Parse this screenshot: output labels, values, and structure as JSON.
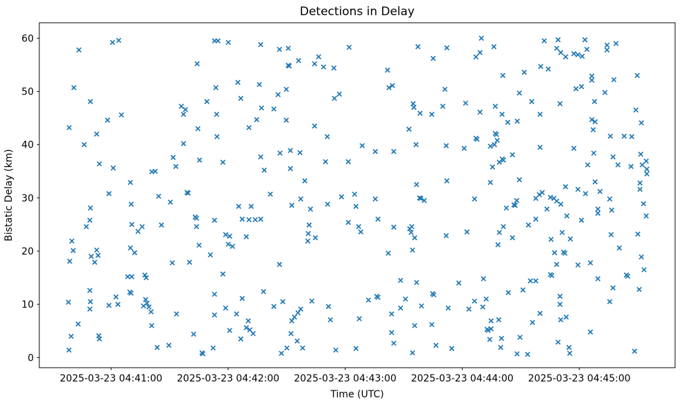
{
  "figure": {
    "title": "Detections in Delay",
    "xlabel": "Time (UTC)",
    "ylabel": "Bistatic Delay (km)"
  },
  "chart_data": {
    "type": "scatter",
    "title": "Detections in Delay",
    "xlabel": "Time (UTC)",
    "ylabel": "Bistatic Delay (km)",
    "marker": "x",
    "marker_color": "#1f77b4",
    "axis_color": "#000000",
    "grid": false,
    "legend": null,
    "x_unit": "seconds after 2025-03-23 04:40:00 UTC",
    "xlim_sec": [
      23.2,
      349.1
    ],
    "ylim": [
      -1.9,
      62.9
    ],
    "x_ticks": [
      {
        "sec": 60,
        "label": "2025-03-23 04:41:00"
      },
      {
        "sec": 120,
        "label": "2025-03-23 04:42:00"
      },
      {
        "sec": 180,
        "label": "2025-03-23 04:43:00"
      },
      {
        "sec": 240,
        "label": "2025-03-23 04:44:00"
      },
      {
        "sec": 300,
        "label": "2025-03-23 04:45:00"
      }
    ],
    "y_ticks": [
      0,
      10,
      20,
      30,
      40,
      50,
      60
    ],
    "points": [
      [
        60.7,
        59.2
      ],
      [
        63.9,
        59.6
      ],
      [
        43.5,
        57.8
      ],
      [
        104.1,
        55.2
      ],
      [
        40.9,
        50.7
      ],
      [
        49.4,
        48.1
      ],
      [
        58.2,
        44.6
      ],
      [
        65.3,
        45.6
      ],
      [
        96.0,
        47.2
      ],
      [
        98.1,
        46.6
      ],
      [
        97.1,
        45.7
      ],
      [
        38.5,
        43.2
      ],
      [
        52.6,
        42.0
      ],
      [
        104.5,
        43.0
      ],
      [
        113.0,
        59.5
      ],
      [
        114.8,
        59.5
      ],
      [
        120.1,
        59.2
      ],
      [
        136.7,
        58.8
      ],
      [
        146.3,
        57.9
      ],
      [
        150.8,
        58.1
      ],
      [
        182.0,
        58.3
      ],
      [
        156.1,
        55.8
      ],
      [
        166.4,
        56.5
      ],
      [
        150.8,
        54.9
      ],
      [
        151.3,
        54.8
      ],
      [
        164.3,
        55.2
      ],
      [
        168.9,
        54.6
      ],
      [
        174.2,
        54.4
      ],
      [
        125.0,
        51.7
      ],
      [
        113.7,
        50.7
      ],
      [
        136.0,
        51.3
      ],
      [
        149.8,
        50.4
      ],
      [
        145.6,
        49.4
      ],
      [
        109.1,
        48.1
      ],
      [
        126.5,
        48.7
      ],
      [
        177.0,
        49.5
      ],
      [
        174.5,
        48.7
      ],
      [
        137.1,
        46.9
      ],
      [
        143.4,
        46.7
      ],
      [
        114.1,
        45.7
      ],
      [
        134.6,
        44.7
      ],
      [
        149.8,
        44.6
      ],
      [
        130.7,
        43.2
      ],
      [
        164.3,
        43.5
      ],
      [
        249.8,
        60.0
      ],
      [
        256.2,
        58.4
      ],
      [
        217.3,
        58.4
      ],
      [
        232.1,
        58.2
      ],
      [
        249.1,
        57.3
      ],
      [
        247.0,
        56.5
      ],
      [
        225.1,
        56.2
      ],
      [
        201.7,
        54.0
      ],
      [
        260.8,
        53.0
      ],
      [
        202.4,
        50.7
      ],
      [
        204.2,
        51.1
      ],
      [
        231.1,
        50.4
      ],
      [
        214.8,
        47.7
      ],
      [
        215.2,
        47.0
      ],
      [
        218.4,
        45.9
      ],
      [
        224.4,
        45.7
      ],
      [
        230.0,
        47.2
      ],
      [
        241.7,
        47.8
      ],
      [
        249.1,
        46.1
      ],
      [
        256.9,
        47.2
      ],
      [
        260.4,
        45.7
      ],
      [
        263.3,
        44.2
      ],
      [
        212.7,
        42.9
      ],
      [
        268.2,
        44.4
      ],
      [
        256.9,
        42.1
      ],
      [
        257.5,
        41.9
      ],
      [
        257.9,
        40.8
      ],
      [
        256.5,
        40.0
      ],
      [
        254.4,
        39.7
      ],
      [
        282.0,
        59.5
      ],
      [
        289.1,
        59.7
      ],
      [
        302.9,
        59.7
      ],
      [
        288.4,
        58.1
      ],
      [
        290.5,
        57.3
      ],
      [
        293.0,
        56.5
      ],
      [
        297.2,
        57.1
      ],
      [
        299.3,
        56.9
      ],
      [
        301.5,
        56.6
      ],
      [
        303.9,
        57.9
      ],
      [
        314.2,
        58.7
      ],
      [
        314.2,
        57.8
      ],
      [
        318.8,
        59.0
      ],
      [
        271.8,
        53.6
      ],
      [
        280.2,
        54.7
      ],
      [
        284.1,
        54.2
      ],
      [
        329.7,
        53.0
      ],
      [
        306.4,
        52.9
      ],
      [
        306.4,
        52.1
      ],
      [
        317.7,
        52.2
      ],
      [
        298.3,
        50.5
      ],
      [
        301.1,
        50.9
      ],
      [
        269.3,
        49.7
      ],
      [
        313.1,
        49.8
      ],
      [
        275.6,
        48.1
      ],
      [
        290.1,
        47.7
      ],
      [
        307.8,
        48.1
      ],
      [
        279.9,
        45.7
      ],
      [
        329.0,
        46.5
      ],
      [
        331.8,
        44.1
      ],
      [
        306.4,
        44.7
      ],
      [
        308.1,
        44.3
      ],
      [
        307.1,
        42.8
      ],
      [
        315.9,
        41.6
      ],
      [
        323.0,
        41.6
      ],
      [
        326.9,
        41.5
      ],
      [
        46.2,
        40.0
      ],
      [
        97.1,
        40.2
      ],
      [
        54.0,
        36.4
      ],
      [
        61.1,
        35.6
      ],
      [
        91.8,
        37.6
      ],
      [
        93.2,
        35.9
      ],
      [
        80.9,
        34.9
      ],
      [
        82.6,
        35.0
      ],
      [
        105.3,
        37.1
      ],
      [
        69.9,
        32.9
      ],
      [
        58.9,
        30.8
      ],
      [
        70.3,
        28.8
      ],
      [
        84.4,
        30.3
      ],
      [
        90.4,
        29.2
      ],
      [
        98.9,
        31.0
      ],
      [
        99.5,
        30.9
      ],
      [
        49.4,
        28.1
      ],
      [
        103.1,
        26.4
      ],
      [
        103.8,
        26.2
      ],
      [
        49.1,
        25.8
      ],
      [
        47.3,
        24.6
      ],
      [
        70.6,
        25.0
      ],
      [
        75.9,
        24.6
      ],
      [
        73.8,
        23.7
      ],
      [
        85.8,
        24.9
      ],
      [
        103.8,
        24.6
      ],
      [
        39.9,
        21.9
      ],
      [
        40.6,
        20.1
      ],
      [
        52.6,
        20.2
      ],
      [
        69.9,
        20.6
      ],
      [
        72.1,
        19.7
      ],
      [
        105.1,
        21.1
      ],
      [
        114.3,
        41.5
      ],
      [
        170.8,
        41.5
      ],
      [
        117.3,
        36.7
      ],
      [
        136.7,
        37.7
      ],
      [
        146.6,
        38.4
      ],
      [
        151.9,
        38.9
      ],
      [
        156.8,
        38.5
      ],
      [
        138.5,
        35.2
      ],
      [
        151.9,
        35.5
      ],
      [
        169.9,
        36.8
      ],
      [
        181.6,
        36.8
      ],
      [
        159.3,
        33.2
      ],
      [
        141.6,
        30.7
      ],
      [
        157.2,
        29.8
      ],
      [
        152.6,
        28.6
      ],
      [
        162.2,
        27.9
      ],
      [
        171.0,
        28.8
      ],
      [
        178.1,
        30.2
      ],
      [
        184.8,
        30.7
      ],
      [
        185.5,
        28.4
      ],
      [
        125.4,
        28.4
      ],
      [
        131.8,
        28.4
      ],
      [
        127.2,
        26.0
      ],
      [
        130.7,
        25.9
      ],
      [
        133.9,
        25.9
      ],
      [
        136.7,
        26.0
      ],
      [
        113.0,
        25.8
      ],
      [
        181.6,
        25.4
      ],
      [
        118.7,
        23.1
      ],
      [
        120.8,
        22.8
      ],
      [
        129.3,
        22.7
      ],
      [
        161.5,
        24.9
      ],
      [
        161.1,
        23.3
      ],
      [
        160.8,
        21.9
      ],
      [
        164.7,
        22.5
      ],
      [
        120.1,
        21.3
      ],
      [
        122.2,
        20.9
      ],
      [
        188.7,
        39.8
      ],
      [
        195.4,
        38.7
      ],
      [
        204.9,
        38.7
      ],
      [
        216.3,
        40.0
      ],
      [
        231.8,
        39.8
      ],
      [
        241.0,
        39.3
      ],
      [
        247.0,
        41.2
      ],
      [
        247.6,
        41.0
      ],
      [
        260.5,
        37.3
      ],
      [
        261.1,
        37.1
      ],
      [
        259.0,
        36.7
      ],
      [
        255.5,
        35.8
      ],
      [
        265.7,
        38.1
      ],
      [
        216.6,
        32.5
      ],
      [
        232.1,
        33.2
      ],
      [
        254.4,
        32.9
      ],
      [
        269.3,
        33.4
      ],
      [
        195.4,
        29.8
      ],
      [
        218.1,
        30.0
      ],
      [
        218.7,
        29.9
      ],
      [
        220.5,
        29.5
      ],
      [
        246.3,
        29.8
      ],
      [
        262.6,
        28.1
      ],
      [
        266.5,
        28.7
      ],
      [
        267.1,
        28.6
      ],
      [
        196.8,
        26.0
      ],
      [
        204.9,
        24.5
      ],
      [
        213.1,
        24.2
      ],
      [
        214.1,
        24.6
      ],
      [
        213.8,
        23.5
      ],
      [
        186.9,
        24.6
      ],
      [
        188.0,
        23.6
      ],
      [
        215.6,
        22.5
      ],
      [
        231.8,
        22.9
      ],
      [
        242.4,
        23.6
      ],
      [
        259.0,
        23.5
      ],
      [
        261.1,
        24.6
      ],
      [
        265.7,
        22.5
      ],
      [
        258.3,
        21.2
      ],
      [
        214.5,
        20.2
      ],
      [
        279.9,
        39.5
      ],
      [
        297.2,
        39.3
      ],
      [
        307.4,
        38.4
      ],
      [
        317.3,
        37.7
      ],
      [
        304.3,
        36.2
      ],
      [
        319.8,
        36.2
      ],
      [
        326.5,
        35.9
      ],
      [
        331.5,
        38.2
      ],
      [
        332.2,
        36.2
      ],
      [
        334.3,
        36.9
      ],
      [
        334.6,
        35.4
      ],
      [
        334.6,
        34.5
      ],
      [
        308.1,
        33.0
      ],
      [
        292.9,
        32.1
      ],
      [
        299.3,
        31.6
      ],
      [
        303.2,
        30.8
      ],
      [
        310.6,
        31.2
      ],
      [
        315.6,
        29.8
      ],
      [
        331.1,
        32.8
      ],
      [
        331.1,
        31.6
      ],
      [
        279.5,
        30.6
      ],
      [
        281.0,
        31.0
      ],
      [
        277.7,
        29.9
      ],
      [
        285.2,
        30.1
      ],
      [
        287.0,
        29.9
      ],
      [
        288.4,
        29.4
      ],
      [
        290.5,
        28.8
      ],
      [
        267.9,
        29.5
      ],
      [
        283.4,
        27.9
      ],
      [
        332.9,
        28.9
      ],
      [
        309.5,
        27.9
      ],
      [
        309.5,
        27.1
      ],
      [
        316.6,
        27.7
      ],
      [
        334.3,
        26.6
      ],
      [
        277.7,
        26.0
      ],
      [
        293.6,
        26.6
      ],
      [
        301.1,
        25.8
      ],
      [
        273.9,
        24.9
      ],
      [
        291.2,
        23.5
      ],
      [
        295.4,
        22.3
      ],
      [
        285.5,
        22.2
      ],
      [
        316.3,
        23.1
      ],
      [
        330.0,
        23.2
      ],
      [
        320.5,
        20.6
      ],
      [
        38.8,
        18.1
      ],
      [
        49.8,
        19.0
      ],
      [
        51.6,
        17.9
      ],
      [
        53.3,
        19.2
      ],
      [
        91.4,
        17.8
      ],
      [
        100.2,
        17.9
      ],
      [
        68.5,
        15.2
      ],
      [
        70.6,
        15.2
      ],
      [
        77.3,
        15.5
      ],
      [
        78.0,
        15.0
      ],
      [
        49.1,
        12.6
      ],
      [
        69.6,
        12.3
      ],
      [
        70.2,
        12.1
      ],
      [
        38.1,
        10.4
      ],
      [
        49.4,
        10.5
      ],
      [
        49.1,
        9.1
      ],
      [
        62.5,
        11.4
      ],
      [
        58.9,
        9.8
      ],
      [
        63.5,
        10.0
      ],
      [
        76.6,
        9.7
      ],
      [
        77.7,
        10.9
      ],
      [
        78.4,
        10.2
      ],
      [
        79.4,
        9.5
      ],
      [
        80.5,
        8.6
      ],
      [
        93.5,
        8.2
      ],
      [
        43.1,
        6.3
      ],
      [
        80.8,
        6.0
      ],
      [
        39.5,
        4.0
      ],
      [
        53.7,
        4.1
      ],
      [
        54.0,
        3.5
      ],
      [
        102.3,
        4.4
      ],
      [
        83.6,
        1.9
      ],
      [
        89.6,
        2.3
      ],
      [
        38.4,
        1.4
      ],
      [
        106.6,
        0.9
      ],
      [
        107.0,
        0.7
      ],
      [
        110.9,
        19.3
      ],
      [
        146.3,
        17.5
      ],
      [
        117.3,
        15.7
      ],
      [
        113.0,
        11.9
      ],
      [
        127.2,
        11.1
      ],
      [
        138.1,
        12.4
      ],
      [
        143.4,
        9.6
      ],
      [
        148.0,
        10.5
      ],
      [
        162.9,
        10.6
      ],
      [
        118.7,
        9.3
      ],
      [
        113.0,
        8.0
      ],
      [
        124.3,
        8.2
      ],
      [
        130.3,
        6.9
      ],
      [
        152.6,
        6.9
      ],
      [
        154.0,
        7.6
      ],
      [
        155.8,
        8.4
      ],
      [
        157.2,
        9.1
      ],
      [
        171.4,
        9.6
      ],
      [
        172.4,
        7.1
      ],
      [
        187.2,
        7.3
      ],
      [
        120.8,
        5.1
      ],
      [
        129.3,
        5.6
      ],
      [
        131.1,
        5.2
      ],
      [
        132.8,
        4.5
      ],
      [
        126.5,
        3.5
      ],
      [
        152.2,
        4.5
      ],
      [
        155.4,
        3.1
      ],
      [
        158.2,
        1.8
      ],
      [
        150.1,
        1.8
      ],
      [
        147.3,
        0.8
      ],
      [
        112.3,
        1.8
      ],
      [
        175.2,
        1.4
      ],
      [
        202.1,
        19.6
      ],
      [
        208.4,
        14.5
      ],
      [
        216.6,
        14.1
      ],
      [
        238.2,
        14.0
      ],
      [
        250.9,
        14.8
      ],
      [
        263.6,
        12.2
      ],
      [
        191.9,
        10.8
      ],
      [
        196.2,
        11.5
      ],
      [
        196.8,
        11.3
      ],
      [
        210.9,
        11.0
      ],
      [
        224.8,
        12.0
      ],
      [
        225.4,
        11.8
      ],
      [
        208.4,
        9.3
      ],
      [
        219.1,
        9.7
      ],
      [
        232.8,
        9.3
      ],
      [
        243.4,
        9.1
      ],
      [
        246.3,
        10.6
      ],
      [
        252.3,
        11.0
      ],
      [
        250.5,
        9.5
      ],
      [
        203.8,
        8.2
      ],
      [
        215.6,
        6.0
      ],
      [
        224.4,
        6.2
      ],
      [
        254.8,
        6.9
      ],
      [
        258.7,
        7.1
      ],
      [
        252.7,
        5.3
      ],
      [
        253.3,
        5.1
      ],
      [
        254.8,
        5.4
      ],
      [
        203.8,
        4.7
      ],
      [
        254.1,
        3.4
      ],
      [
        260.1,
        3.6
      ],
      [
        204.9,
        2.7
      ],
      [
        226.5,
        2.3
      ],
      [
        234.6,
        1.7
      ],
      [
        214.5,
        0.9
      ],
      [
        259.7,
        1.9
      ],
      [
        185.5,
        1.7
      ],
      [
        268.1,
        0.7
      ],
      [
        287.3,
        19.7
      ],
      [
        291.9,
        19.8
      ],
      [
        292.6,
        19.6
      ],
      [
        331.8,
        18.9
      ],
      [
        288.4,
        17.5
      ],
      [
        299.3,
        17.4
      ],
      [
        305.7,
        17.8
      ],
      [
        333.2,
        16.5
      ],
      [
        285.2,
        15.6
      ],
      [
        285.9,
        15.4
      ],
      [
        309.5,
        14.8
      ],
      [
        274.9,
        14.4
      ],
      [
        277.7,
        14.4
      ],
      [
        271.1,
        12.7
      ],
      [
        317.3,
        13.1
      ],
      [
        324.1,
        15.5
      ],
      [
        324.8,
        15.3
      ],
      [
        330.7,
        12.8
      ],
      [
        290.1,
        11.5
      ],
      [
        290.1,
        10.0
      ],
      [
        315.6,
        10.5
      ],
      [
        279.9,
        8.3
      ],
      [
        276.0,
        6.6
      ],
      [
        290.5,
        7.1
      ],
      [
        293.3,
        7.6
      ],
      [
        305.7,
        4.8
      ],
      [
        269.6,
        3.8
      ],
      [
        289.1,
        2.9
      ],
      [
        294.7,
        1.9
      ],
      [
        295.1,
        0.8
      ],
      [
        273.5,
        0.6
      ],
      [
        328.3,
        1.2
      ]
    ]
  }
}
